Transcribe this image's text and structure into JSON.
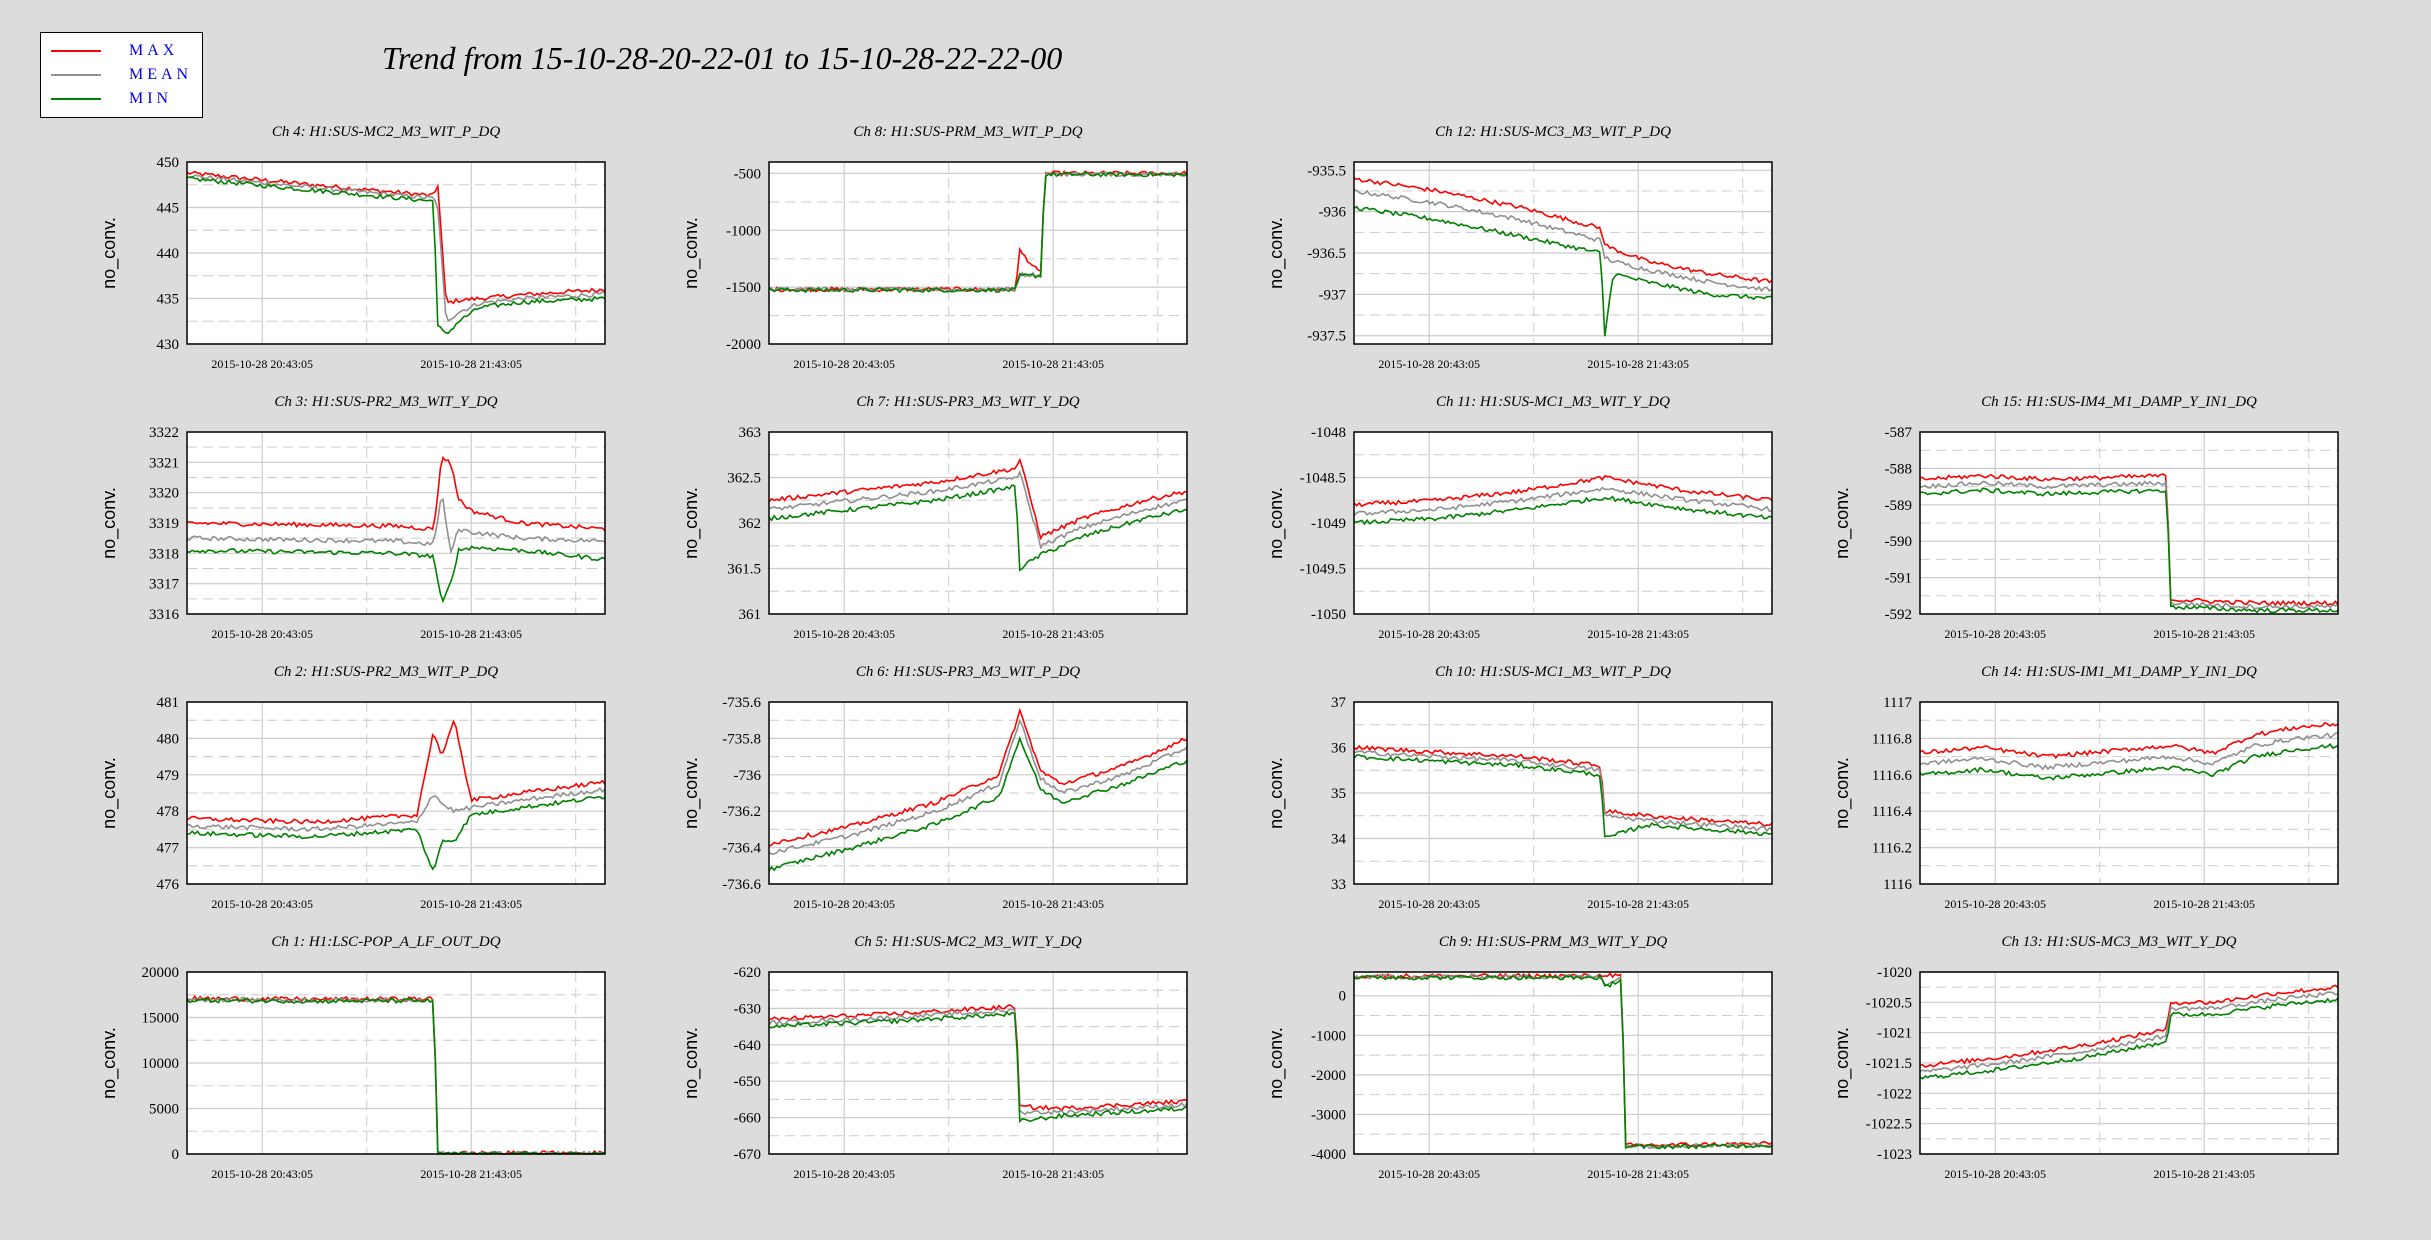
{
  "title": "Trend from 15-10-28-20-22-01 to 15-10-28-22-22-00",
  "legend": [
    {
      "label": "MAX",
      "color": "#ff0000"
    },
    {
      "label": "MEAN",
      "color": "#909090"
    },
    {
      "label": "MIN",
      "color": "#008000"
    }
  ],
  "chart_data": [
    {
      "type": "line",
      "title": "Ch 4: H1:SUS-MC2_M3_WIT_P_DQ",
      "ylabel": "no_conv.",
      "x_ticks": [
        "2015-10-28 20:43:05",
        "2015-10-28 21:43:05"
      ],
      "ylim": [
        430,
        450
      ],
      "yticks": [
        430,
        435,
        440,
        445,
        450
      ],
      "x": [
        0,
        0.3,
        0.59,
        0.6,
        0.62,
        0.65,
        0.7,
        0.8,
        1.0
      ],
      "series": [
        {
          "name": "MAX",
          "values": [
            448.8,
            447.5,
            446.3,
            447.5,
            434.5,
            434.8,
            435.0,
            435.4,
            436.0
          ]
        },
        {
          "name": "MEAN",
          "values": [
            448.5,
            447.2,
            446.0,
            445.0,
            432.5,
            433.5,
            434.5,
            435.0,
            435.5
          ]
        },
        {
          "name": "MIN",
          "values": [
            448.2,
            446.9,
            445.7,
            432.0,
            431.0,
            432.5,
            434.0,
            434.6,
            435.0
          ]
        }
      ]
    },
    {
      "type": "line",
      "title": "Ch 8: H1:SUS-PRM_M3_WIT_P_DQ",
      "ylabel": "no_conv.",
      "x_ticks": [
        "2015-10-28 20:43:05",
        "2015-10-28 21:43:05"
      ],
      "ylim": [
        -2000,
        -400
      ],
      "yticks": [
        -2000,
        -1500,
        -1000,
        -500
      ],
      "x": [
        0,
        0.59,
        0.6,
        0.645,
        0.65,
        0.66,
        1.0
      ],
      "series": [
        {
          "name": "MAX",
          "values": [
            -1520,
            -1520,
            -1180,
            -1370,
            -1370,
            -500,
            -500
          ]
        },
        {
          "name": "MEAN",
          "values": [
            -1520,
            -1520,
            -1390,
            -1390,
            -1390,
            -505,
            -505
          ]
        },
        {
          "name": "MIN",
          "values": [
            -1525,
            -1525,
            -1400,
            -1400,
            -1400,
            -510,
            -510
          ]
        }
      ]
    },
    {
      "type": "line",
      "title": "Ch 12: H1:SUS-MC3_M3_WIT_P_DQ",
      "ylabel": "no_conv.",
      "x_ticks": [
        "2015-10-28 20:43:05",
        "2015-10-28 21:43:05"
      ],
      "ylim": [
        -937.6,
        -935.4
      ],
      "yticks": [
        -937.5,
        -937,
        -936.5,
        -936,
        -935.5
      ],
      "x": [
        0,
        0.2,
        0.4,
        0.59,
        0.6,
        0.62,
        0.7,
        0.85,
        1.0
      ],
      "series": [
        {
          "name": "MAX",
          "values": [
            -935.6,
            -935.75,
            -935.95,
            -936.2,
            -936.4,
            -936.45,
            -936.6,
            -936.75,
            -936.85
          ]
        },
        {
          "name": "MEAN",
          "values": [
            -935.75,
            -935.9,
            -936.1,
            -936.35,
            -936.55,
            -936.6,
            -936.7,
            -936.85,
            -936.95
          ]
        },
        {
          "name": "MIN",
          "values": [
            -935.95,
            -936.1,
            -936.3,
            -936.5,
            -937.5,
            -936.75,
            -936.85,
            -937.0,
            -937.05
          ]
        }
      ]
    },
    null,
    {
      "type": "line",
      "title": "Ch 3: H1:SUS-PR2_M3_WIT_Y_DQ",
      "ylabel": "no_conv.",
      "x_ticks": [
        "2015-10-28 20:43:05",
        "2015-10-28 21:43:05"
      ],
      "ylim": [
        3316,
        3322
      ],
      "yticks": [
        3316,
        3317,
        3318,
        3319,
        3320,
        3321,
        3322
      ],
      "x": [
        0,
        0.5,
        0.59,
        0.61,
        0.63,
        0.65,
        0.68,
        0.8,
        1.0
      ],
      "series": [
        {
          "name": "MAX",
          "values": [
            3319.0,
            3318.9,
            3318.8,
            3321.2,
            3321.0,
            3319.8,
            3319.4,
            3319.0,
            3318.8
          ]
        },
        {
          "name": "MEAN",
          "values": [
            3318.5,
            3318.4,
            3318.3,
            3320.0,
            3318.0,
            3318.8,
            3318.7,
            3318.5,
            3318.4
          ]
        },
        {
          "name": "MIN",
          "values": [
            3318.1,
            3318.0,
            3317.9,
            3316.3,
            3317.0,
            3318.1,
            3318.2,
            3318.1,
            3317.8
          ]
        }
      ]
    },
    {
      "type": "line",
      "title": "Ch 7: H1:SUS-PR3_M3_WIT_Y_DQ",
      "ylabel": "no_conv.",
      "x_ticks": [
        "2015-10-28 20:43:05",
        "2015-10-28 21:43:05"
      ],
      "ylim": [
        361,
        363
      ],
      "yticks": [
        361,
        361.5,
        362,
        362.5,
        363
      ],
      "x": [
        0,
        0.2,
        0.4,
        0.59,
        0.6,
        0.65,
        0.75,
        0.9,
        1.0
      ],
      "series": [
        {
          "name": "MAX",
          "values": [
            362.25,
            362.35,
            362.45,
            362.6,
            362.7,
            361.85,
            362.05,
            362.25,
            362.35
          ]
        },
        {
          "name": "MEAN",
          "values": [
            362.15,
            362.25,
            362.35,
            362.5,
            362.55,
            361.75,
            361.95,
            362.15,
            362.25
          ]
        },
        {
          "name": "MIN",
          "values": [
            362.05,
            362.15,
            362.25,
            362.4,
            361.5,
            361.65,
            361.85,
            362.05,
            362.15
          ]
        }
      ]
    },
    {
      "type": "line",
      "title": "Ch 11: H1:SUS-MC1_M3_WIT_Y_DQ",
      "ylabel": "no_conv.",
      "x_ticks": [
        "2015-10-28 20:43:05",
        "2015-10-28 21:43:05"
      ],
      "ylim": [
        -1050,
        -1048
      ],
      "yticks": [
        -1050,
        -1049.5,
        -1049,
        -1048.5,
        -1048
      ],
      "x": [
        0,
        0.2,
        0.4,
        0.6,
        0.8,
        1.0
      ],
      "series": [
        {
          "name": "MAX",
          "values": [
            -1048.8,
            -1048.75,
            -1048.65,
            -1048.5,
            -1048.65,
            -1048.75
          ]
        },
        {
          "name": "MEAN",
          "values": [
            -1048.9,
            -1048.85,
            -1048.75,
            -1048.62,
            -1048.75,
            -1048.85
          ]
        },
        {
          "name": "MIN",
          "values": [
            -1049.0,
            -1048.95,
            -1048.85,
            -1048.72,
            -1048.85,
            -1048.95
          ]
        }
      ]
    },
    {
      "type": "line",
      "title": "Ch 15: H1:SUS-IM4_M1_DAMP_Y_IN1_DQ",
      "ylabel": "no_conv.",
      "x_ticks": [
        "2015-10-28 20:43:05",
        "2015-10-28 21:43:05"
      ],
      "ylim": [
        -592,
        -587
      ],
      "yticks": [
        -592,
        -591,
        -590,
        -589,
        -588,
        -587
      ],
      "x": [
        0,
        0.15,
        0.3,
        0.59,
        0.6,
        0.8,
        1.0
      ],
      "series": [
        {
          "name": "MAX",
          "values": [
            -588.3,
            -588.2,
            -588.3,
            -588.2,
            -591.6,
            -591.7,
            -591.7
          ]
        },
        {
          "name": "MEAN",
          "values": [
            -588.5,
            -588.4,
            -588.5,
            -588.4,
            -591.7,
            -591.8,
            -591.8
          ]
        },
        {
          "name": "MIN",
          "values": [
            -588.7,
            -588.6,
            -588.7,
            -588.6,
            -591.8,
            -591.9,
            -591.9
          ]
        }
      ]
    },
    {
      "type": "line",
      "title": "Ch 2: H1:SUS-PR2_M3_WIT_P_DQ",
      "ylabel": "no_conv.",
      "x_ticks": [
        "2015-10-28 20:43:05",
        "2015-10-28 21:43:05"
      ],
      "ylim": [
        476,
        481
      ],
      "yticks": [
        476,
        477,
        478,
        479,
        480,
        481
      ],
      "x": [
        0,
        0.3,
        0.55,
        0.59,
        0.61,
        0.64,
        0.68,
        0.8,
        1.0
      ],
      "series": [
        {
          "name": "MAX",
          "values": [
            477.8,
            477.7,
            477.9,
            480.2,
            479.5,
            480.5,
            478.3,
            478.5,
            478.8
          ]
        },
        {
          "name": "MEAN",
          "values": [
            477.6,
            477.5,
            477.7,
            478.5,
            478.2,
            478.0,
            478.1,
            478.3,
            478.6
          ]
        },
        {
          "name": "MIN",
          "values": [
            477.4,
            477.3,
            477.5,
            476.3,
            477.2,
            477.2,
            477.9,
            478.1,
            478.4
          ]
        }
      ]
    },
    {
      "type": "line",
      "title": "Ch 6: H1:SUS-PR3_M3_WIT_P_DQ",
      "ylabel": "no_conv.",
      "x_ticks": [
        "2015-10-28 20:43:05",
        "2015-10-28 21:43:05"
      ],
      "ylim": [
        -736.6,
        -735.6
      ],
      "yticks": [
        -736.6,
        -736.4,
        -736.2,
        -736,
        -735.8,
        -735.6
      ],
      "x": [
        0,
        0.2,
        0.4,
        0.55,
        0.6,
        0.65,
        0.7,
        0.85,
        1.0
      ],
      "series": [
        {
          "name": "MAX",
          "values": [
            -736.38,
            -736.28,
            -736.15,
            -736.0,
            -735.65,
            -735.98,
            -736.05,
            -735.95,
            -735.8
          ]
        },
        {
          "name": "MEAN",
          "values": [
            -736.43,
            -736.33,
            -736.2,
            -736.05,
            -735.7,
            -736.02,
            -736.1,
            -736.0,
            -735.85
          ]
        },
        {
          "name": "MIN",
          "values": [
            -736.52,
            -736.4,
            -736.27,
            -736.12,
            -735.8,
            -736.08,
            -736.15,
            -736.05,
            -735.92
          ]
        }
      ]
    },
    {
      "type": "line",
      "title": "Ch 10: H1:SUS-MC1_M3_WIT_P_DQ",
      "ylabel": "no_conv.",
      "x_ticks": [
        "2015-10-28 20:43:05",
        "2015-10-28 21:43:05"
      ],
      "ylim": [
        33,
        37
      ],
      "yticks": [
        33,
        34,
        35,
        36,
        37
      ],
      "x": [
        0,
        0.2,
        0.4,
        0.59,
        0.6,
        0.7,
        0.85,
        1.0
      ],
      "series": [
        {
          "name": "MAX",
          "values": [
            36.0,
            35.9,
            35.8,
            35.6,
            34.6,
            34.5,
            34.4,
            34.3
          ]
        },
        {
          "name": "MEAN",
          "values": [
            35.9,
            35.8,
            35.7,
            35.5,
            34.5,
            34.4,
            34.3,
            34.2
          ]
        },
        {
          "name": "MIN",
          "values": [
            35.8,
            35.7,
            35.6,
            35.4,
            34.0,
            34.3,
            34.2,
            34.1
          ]
        }
      ]
    },
    {
      "type": "line",
      "title": "Ch 14: H1:SUS-IM1_M1_DAMP_Y_IN1_DQ",
      "ylabel": "no_conv.",
      "x_ticks": [
        "2015-10-28 20:43:05",
        "2015-10-28 21:43:05"
      ],
      "ylim": [
        1116,
        1117
      ],
      "yticks": [
        1116,
        1116.2,
        1116.4,
        1116.6,
        1116.8,
        1117
      ],
      "x": [
        0,
        0.15,
        0.3,
        0.45,
        0.6,
        0.7,
        0.8,
        0.9,
        1.0
      ],
      "series": [
        {
          "name": "MAX",
          "values": [
            1116.72,
            1116.75,
            1116.7,
            1116.73,
            1116.76,
            1116.72,
            1116.82,
            1116.86,
            1116.88
          ]
        },
        {
          "name": "MEAN",
          "values": [
            1116.66,
            1116.69,
            1116.64,
            1116.67,
            1116.7,
            1116.66,
            1116.76,
            1116.8,
            1116.82
          ]
        },
        {
          "name": "MIN",
          "values": [
            1116.6,
            1116.63,
            1116.58,
            1116.61,
            1116.64,
            1116.6,
            1116.7,
            1116.74,
            1116.76
          ]
        }
      ]
    },
    {
      "type": "line",
      "title": "Ch 1: H1:LSC-POP_A_LF_OUT_DQ",
      "ylabel": "no_conv.",
      "x_ticks": [
        "2015-10-28 20:43:05",
        "2015-10-28 21:43:05"
      ],
      "ylim": [
        0,
        20000
      ],
      "yticks": [
        0,
        5000,
        10000,
        15000,
        20000
      ],
      "x": [
        0,
        0.3,
        0.59,
        0.6,
        0.8,
        1.0
      ],
      "series": [
        {
          "name": "MAX",
          "values": [
            17100,
            17000,
            17050,
            100,
            80,
            100
          ]
        },
        {
          "name": "MEAN",
          "values": [
            17000,
            16900,
            16950,
            50,
            40,
            50
          ]
        },
        {
          "name": "MIN",
          "values": [
            16900,
            16800,
            16850,
            0,
            0,
            0
          ]
        }
      ]
    },
    {
      "type": "line",
      "title": "Ch 5: H1:SUS-MC2_M3_WIT_Y_DQ",
      "ylabel": "no_conv.",
      "x_ticks": [
        "2015-10-28 20:43:05",
        "2015-10-28 21:43:05"
      ],
      "ylim": [
        -670,
        -620
      ],
      "yticks": [
        -670,
        -660,
        -650,
        -640,
        -630,
        -620
      ],
      "x": [
        0,
        0.3,
        0.59,
        0.6,
        0.7,
        0.85,
        1.0
      ],
      "series": [
        {
          "name": "MAX",
          "values": [
            -633,
            -631.5,
            -629.5,
            -657,
            -657.5,
            -656.5,
            -655.5
          ]
        },
        {
          "name": "MEAN",
          "values": [
            -634,
            -632.5,
            -630.5,
            -658.5,
            -658.5,
            -657.5,
            -656.5
          ]
        },
        {
          "name": "MIN",
          "values": [
            -635,
            -633.5,
            -631.5,
            -661,
            -659.5,
            -658.5,
            -657.5
          ]
        }
      ]
    },
    {
      "type": "line",
      "title": "Ch 9: H1:SUS-PRM_M3_WIT_Y_DQ",
      "ylabel": "no_conv.",
      "x_ticks": [
        "2015-10-28 20:43:05",
        "2015-10-28 21:43:05"
      ],
      "ylim": [
        -4000,
        600
      ],
      "yticks": [
        -4000,
        -3000,
        -2000,
        -1000,
        0
      ],
      "x": [
        0,
        0.59,
        0.6,
        0.64,
        0.65,
        0.85,
        1.0
      ],
      "series": [
        {
          "name": "MAX",
          "values": [
            500,
            500,
            550,
            480,
            -3780,
            -3760,
            -3740
          ]
        },
        {
          "name": "MEAN",
          "values": [
            480,
            480,
            300,
            460,
            -3800,
            -3780,
            -3760
          ]
        },
        {
          "name": "MIN",
          "values": [
            460,
            460,
            200,
            440,
            -3820,
            -3800,
            -3780
          ]
        }
      ]
    },
    {
      "type": "line",
      "title": "Ch 13: H1:SUS-MC3_M3_WIT_Y_DQ",
      "ylabel": "no_conv.",
      "x_ticks": [
        "2015-10-28 20:43:05",
        "2015-10-28 21:43:05"
      ],
      "ylim": [
        -1023,
        -1020
      ],
      "yticks": [
        -1023,
        -1022.5,
        -1022,
        -1021.5,
        -1021,
        -1020.5,
        -1020
      ],
      "x": [
        0,
        0.2,
        0.4,
        0.59,
        0.6,
        0.7,
        0.85,
        1.0
      ],
      "series": [
        {
          "name": "MAX",
          "values": [
            -1021.55,
            -1021.4,
            -1021.2,
            -1020.95,
            -1020.5,
            -1020.5,
            -1020.35,
            -1020.25
          ]
        },
        {
          "name": "MEAN",
          "values": [
            -1021.65,
            -1021.5,
            -1021.3,
            -1021.05,
            -1020.6,
            -1020.6,
            -1020.45,
            -1020.35
          ]
        },
        {
          "name": "MIN",
          "values": [
            -1021.75,
            -1021.6,
            -1021.4,
            -1021.15,
            -1020.7,
            -1020.7,
            -1020.55,
            -1020.45
          ]
        }
      ]
    }
  ]
}
